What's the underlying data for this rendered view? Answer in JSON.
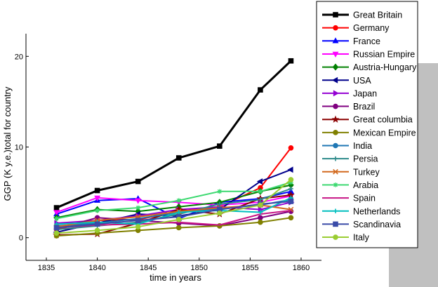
{
  "chart_data": {
    "type": "line",
    "title": "",
    "xlabel": "time in years",
    "ylabel": "GGP (K y.e.)total for country",
    "xlim": [
      1833,
      1862
    ],
    "ylim": [
      -2.5,
      22.5
    ],
    "xticks": [
      1835,
      1840,
      1845,
      1850,
      1855,
      1860
    ],
    "yticks": [
      0,
      10,
      20
    ],
    "x": [
      1836,
      1840,
      1844,
      1848,
      1852,
      1856,
      1859
    ],
    "legend_position": "right",
    "series": [
      {
        "name": "Great Britain",
        "color": "#000000",
        "marker": "square",
        "values": [
          3.3,
          5.2,
          6.2,
          8.8,
          10.1,
          16.3,
          19.5
        ]
      },
      {
        "name": "Germany",
        "color": "#ff0000",
        "marker": "circle",
        "values": [
          0.9,
          1.9,
          2.0,
          2.9,
          3.4,
          5.5,
          9.9
        ]
      },
      {
        "name": "France",
        "color": "#0000ff",
        "marker": "triangle-up",
        "values": [
          2.6,
          4.1,
          4.3,
          2.1,
          3.9,
          4.3,
          5.1
        ]
      },
      {
        "name": "Russian Empire",
        "color": "#ff00ff",
        "marker": "triangle-down",
        "values": [
          2.8,
          4.4,
          4.1,
          3.9,
          3.6,
          3.9,
          4.6
        ]
      },
      {
        "name": "Austria-Hungary",
        "color": "#008000",
        "marker": "diamond",
        "values": [
          2.2,
          3.1,
          2.9,
          3.4,
          3.9,
          5.1,
          5.8
        ]
      },
      {
        "name": "USA",
        "color": "#00008b",
        "marker": "triangle-left",
        "values": [
          0.6,
          1.6,
          2.6,
          2.4,
          3.1,
          6.2,
          7.5
        ]
      },
      {
        "name": "Japan",
        "color": "#9400d3",
        "marker": "triangle-right",
        "values": [
          1.6,
          1.9,
          2.4,
          3.1,
          3.4,
          3.1,
          3.9
        ]
      },
      {
        "name": "Brazil",
        "color": "#800080",
        "marker": "circle",
        "values": [
          1.0,
          2.2,
          1.9,
          1.6,
          1.3,
          2.2,
          2.9
        ]
      },
      {
        "name": "Great columbia",
        "color": "#8b0000",
        "marker": "star",
        "values": [
          0.3,
          0.4,
          1.6,
          3.1,
          2.6,
          4.3,
          4.7
        ]
      },
      {
        "name": "Mexican Empire",
        "color": "#808000",
        "marker": "circle",
        "values": [
          0.2,
          0.5,
          0.8,
          1.1,
          1.3,
          1.7,
          2.2
        ]
      },
      {
        "name": "India",
        "color": "#1f77b4",
        "marker": "circle",
        "values": [
          1.3,
          1.6,
          2.1,
          2.8,
          3.2,
          3.6,
          4.2
        ]
      },
      {
        "name": "Persia",
        "color": "#2e8b8b",
        "marker": "plus",
        "values": [
          0.9,
          1.3,
          1.7,
          2.6,
          3.7,
          4.2,
          5.4
        ]
      },
      {
        "name": "Turkey",
        "color": "#d2691e",
        "marker": "x",
        "values": [
          1.2,
          1.9,
          2.3,
          2.9,
          3.3,
          3.6,
          3.1
        ]
      },
      {
        "name": "Arabia",
        "color": "#3cd970",
        "marker": "asterisk",
        "values": [
          2.1,
          3.0,
          3.3,
          4.1,
          5.1,
          5.1,
          6.1
        ]
      },
      {
        "name": "Spain",
        "color": "#c71585",
        "marker": "none",
        "values": [
          1.1,
          1.4,
          1.5,
          1.7,
          1.4,
          2.6,
          3.0
        ]
      },
      {
        "name": "Netherlands",
        "color": "#00bfbf",
        "marker": "plus",
        "values": [
          1.5,
          1.7,
          1.5,
          2.8,
          3.0,
          2.8,
          4.4
        ]
      },
      {
        "name": "Scandinavia",
        "color": "#3a4ba8",
        "marker": "square",
        "values": [
          1.1,
          1.5,
          1.9,
          2.3,
          3.1,
          3.7,
          4.0
        ]
      },
      {
        "name": "Italy",
        "color": "#9acd32",
        "marker": "circle",
        "values": [
          0.5,
          0.8,
          1.2,
          2.0,
          2.7,
          3.6,
          6.4
        ]
      }
    ]
  }
}
